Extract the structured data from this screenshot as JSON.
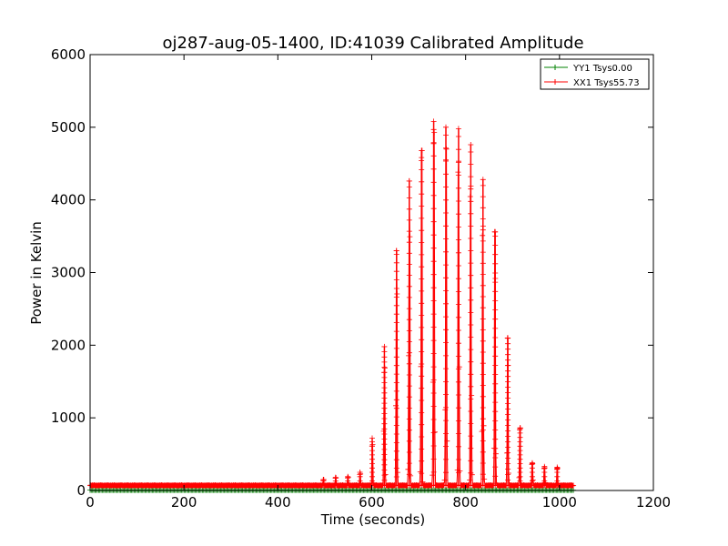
{
  "chart_data": {
    "type": "line",
    "title": "oj287-aug-05-1400, ID:41039 Calibrated Amplitude",
    "xlabel": "Time (seconds)",
    "ylabel": "Power in Kelvin",
    "xlim": [
      0,
      1200
    ],
    "ylim": [
      0,
      6000
    ],
    "xticks": [
      "0",
      "200",
      "400",
      "600",
      "800",
      "1000",
      "1200"
    ],
    "yticks": [
      "0",
      "1000",
      "2000",
      "3000",
      "4000",
      "5000",
      "6000"
    ],
    "legend_position": "top-right",
    "grid": false,
    "series": [
      {
        "name": "YY1 Tsys0.00",
        "color": "#008000",
        "marker": "plus",
        "x_range": [
          0,
          1030
        ],
        "baseline": 5
      },
      {
        "name": "XX1 Tsys55.73",
        "color": "#ff0000",
        "marker": "plus",
        "x_range": [
          0,
          1030
        ],
        "baseline": 70,
        "bursts": [
          {
            "x": 497,
            "peak": 150
          },
          {
            "x": 523,
            "peak": 180
          },
          {
            "x": 549,
            "peak": 190
          },
          {
            "x": 575,
            "peak": 250
          },
          {
            "x": 601,
            "peak": 720
          },
          {
            "x": 627,
            "peak": 1980
          },
          {
            "x": 653,
            "peak": 3300
          },
          {
            "x": 680,
            "peak": 4260
          },
          {
            "x": 706,
            "peak": 4680
          },
          {
            "x": 732,
            "peak": 5080
          },
          {
            "x": 758,
            "peak": 5000
          },
          {
            "x": 785,
            "peak": 4980
          },
          {
            "x": 811,
            "peak": 4760
          },
          {
            "x": 837,
            "peak": 4280
          },
          {
            "x": 863,
            "peak": 3560
          },
          {
            "x": 890,
            "peak": 2100
          },
          {
            "x": 916,
            "peak": 860
          },
          {
            "x": 942,
            "peak": 380
          },
          {
            "x": 968,
            "peak": 330
          },
          {
            "x": 995,
            "peak": 320
          }
        ]
      }
    ]
  }
}
